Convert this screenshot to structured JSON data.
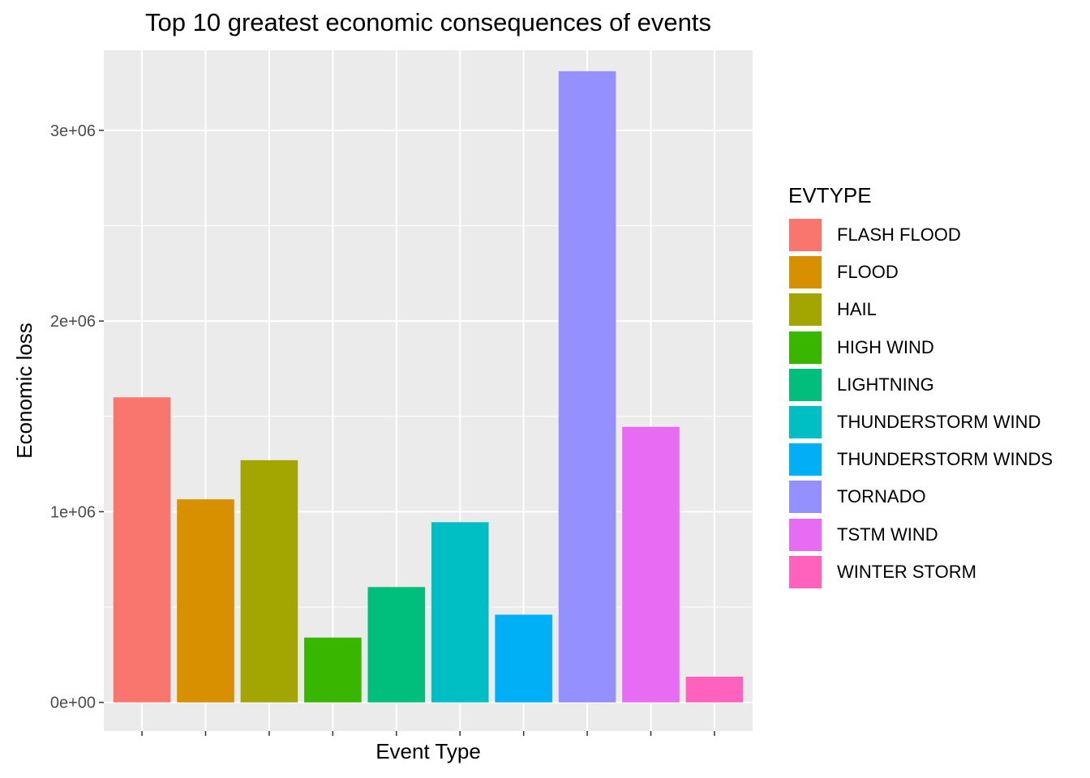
{
  "chart_data": {
    "type": "bar",
    "title": "Top 10 greatest economic consequences of events",
    "xlabel": "Event Type",
    "ylabel": "Economic loss",
    "categories": [
      "FLASH FLOOD",
      "FLOOD",
      "HAIL",
      "HIGH WIND",
      "LIGHTNING",
      "THUNDERSTORM WIND",
      "THUNDERSTORM WINDS",
      "TORNADO",
      "TSTM WIND",
      "WINTER STORM"
    ],
    "values": [
      1600000,
      1065000,
      1270000,
      340000,
      605000,
      945000,
      460000,
      3310000,
      1445000,
      135000
    ],
    "colors": [
      "#F8766D",
      "#D89000",
      "#A3A500",
      "#39B600",
      "#00BF7D",
      "#00BFC4",
      "#00B0F6",
      "#9590FF",
      "#E76BF3",
      "#FF62BC"
    ],
    "ylim": [
      -150000,
      3420000
    ],
    "y_ticks": [
      0,
      1000000,
      2000000,
      3000000
    ],
    "y_tick_labels": [
      "0e+00",
      "1e+06",
      "2e+06",
      "3e+06"
    ],
    "grid": true,
    "legend": {
      "title": "EVTYPE",
      "position": "right"
    }
  }
}
